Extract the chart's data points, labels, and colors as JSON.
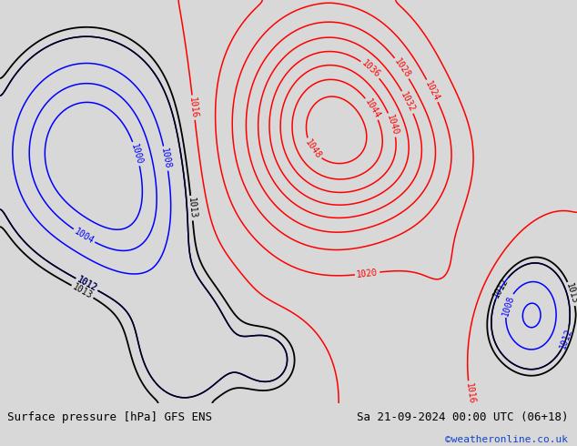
{
  "title_left": "Surface pressure [hPa] GFS ENS",
  "title_right": "Sa 21-09-2024 00:00 UTC (06+18)",
  "copyright": "©weatheronline.co.uk",
  "bg_color": "#c8dac8",
  "footer_bg": "#d8d8d8",
  "levels_red": [
    1016,
    1020,
    1024,
    1028,
    1032,
    1036,
    1040,
    1044,
    1048
  ],
  "levels_blue": [
    1000,
    1004,
    1008,
    1012
  ],
  "levels_black": [
    1013,
    1016
  ],
  "label_fontsize": 7
}
